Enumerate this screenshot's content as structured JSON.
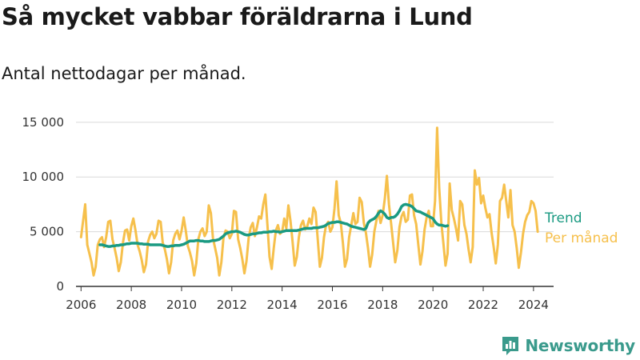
{
  "header": {
    "title": "Så mycket vabbar föräldrarna i Lund",
    "subtitle": "Antal nettodagar per månad."
  },
  "brand": {
    "name": "Newsworthy",
    "icon": "newsworthy-logo-icon",
    "color": "#3a9a8c"
  },
  "chart_data": {
    "type": "line",
    "y_tick_labels": [
      "0",
      "5 000",
      "10 000",
      "15 000"
    ],
    "y_ticks": [
      0,
      5000,
      10000,
      15000
    ],
    "ylim": [
      0,
      15500
    ],
    "x_tick_labels": [
      "2006",
      "2008",
      "2010",
      "2012",
      "2014",
      "2016",
      "2018",
      "2020",
      "2022",
      "2024"
    ],
    "x_ticks": [
      2006,
      2008,
      2010,
      2012,
      2014,
      2016,
      2018,
      2020,
      2022,
      2024
    ],
    "xlim": [
      2005.8,
      2024.8
    ],
    "grid": "horizontal",
    "legend": "right end of lines",
    "series": [
      {
        "name": "Per månad",
        "color": "#f6c04c",
        "start_year": 2006,
        "values": [
          4500,
          6000,
          7500,
          3800,
          3000,
          2200,
          1000,
          1800,
          3800,
          4300,
          4500,
          3600,
          4500,
          5900,
          6000,
          4300,
          3500,
          2600,
          1400,
          2200,
          4000,
          5100,
          5200,
          4200,
          5500,
          6200,
          5100,
          3800,
          3200,
          2400,
          1300,
          2000,
          4100,
          4700,
          5000,
          4400,
          4800,
          6000,
          5900,
          4000,
          3400,
          2500,
          1200,
          2200,
          4200,
          4800,
          5100,
          4300,
          5100,
          6300,
          5100,
          3700,
          3100,
          2300,
          1000,
          2100,
          4300,
          5000,
          5300,
          4600,
          5000,
          7400,
          6700,
          4400,
          3500,
          2600,
          1000,
          2200,
          4400,
          5100,
          5000,
          4400,
          4800,
          6900,
          6800,
          4300,
          3500,
          2500,
          1200,
          2300,
          4400,
          5400,
          5800,
          4600,
          5400,
          6400,
          6200,
          7500,
          8400,
          5600,
          2700,
          1600,
          3500,
          5100,
          5600,
          4800,
          5000,
          6200,
          5300,
          7400,
          6000,
          4100,
          1900,
          2700,
          4500,
          5600,
          6000,
          5200,
          5500,
          6200,
          5700,
          7200,
          6800,
          4300,
          1800,
          2600,
          4500,
          5600,
          5900,
          5000,
          5400,
          7100,
          9600,
          6500,
          5800,
          4000,
          1800,
          2500,
          4500,
          5600,
          6700,
          5700,
          5900,
          8100,
          7700,
          5800,
          4900,
          3500,
          1800,
          2900,
          5000,
          6000,
          6900,
          5800,
          6500,
          8000,
          10100,
          7500,
          5800,
          4000,
          2200,
          3300,
          5400,
          6400,
          6800,
          5900,
          6100,
          8300,
          8400,
          6500,
          5700,
          3800,
          2000,
          3200,
          5200,
          6300,
          6900,
          5500,
          5500,
          7800,
          14500,
          9000,
          5800,
          3900,
          1900,
          3000,
          9400,
          7000,
          6200,
          5300,
          4200,
          7800,
          7500,
          5600,
          4800,
          3400,
          2200,
          3600,
          10600,
          9300,
          9900,
          7600,
          8300,
          7200,
          6300,
          6600,
          4900,
          3600,
          2100,
          3800,
          7800,
          8100,
          9300,
          7800,
          6300,
          8800,
          5600,
          5000,
          3500,
          1700,
          3100,
          4800,
          5900,
          6500,
          6800,
          7800,
          7600,
          6900,
          5000
        ]
      },
      {
        "name": "Trend",
        "color": "#1a9a82",
        "start_year": 2006.75,
        "values": [
          3800,
          3800,
          3750,
          3700,
          3650,
          3650,
          3700,
          3700,
          3750,
          3750,
          3800,
          3800,
          3850,
          3900,
          3900,
          3950,
          3950,
          3950,
          3950,
          3900,
          3900,
          3850,
          3850,
          3850,
          3800,
          3800,
          3800,
          3800,
          3800,
          3800,
          3750,
          3700,
          3650,
          3650,
          3700,
          3700,
          3750,
          3750,
          3750,
          3800,
          3850,
          3950,
          4050,
          4150,
          4150,
          4150,
          4200,
          4200,
          4150,
          4150,
          4100,
          4100,
          4100,
          4150,
          4200,
          4200,
          4250,
          4300,
          4450,
          4600,
          4800,
          4900,
          4950,
          5000,
          5000,
          5050,
          5000,
          4950,
          4850,
          4750,
          4700,
          4700,
          4750,
          4800,
          4800,
          4850,
          4900,
          4900,
          4950,
          4950,
          4950,
          5000,
          5000,
          5050,
          5000,
          5000,
          4950,
          5000,
          5050,
          5100,
          5100,
          5100,
          5100,
          5100,
          5100,
          5150,
          5200,
          5250,
          5300,
          5300,
          5300,
          5300,
          5350,
          5350,
          5350,
          5400,
          5450,
          5500,
          5600,
          5750,
          5800,
          5850,
          5850,
          5900,
          5900,
          5850,
          5800,
          5750,
          5700,
          5600,
          5500,
          5450,
          5400,
          5350,
          5300,
          5250,
          5200,
          5300,
          5800,
          6000,
          6100,
          6200,
          6400,
          6700,
          6900,
          6800,
          6600,
          6300,
          6200,
          6300,
          6300,
          6400,
          6600,
          6900,
          7300,
          7450,
          7500,
          7450,
          7400,
          7300,
          7100,
          6900,
          6850,
          6800,
          6700,
          6600,
          6500,
          6400,
          6300,
          6200,
          5900,
          5700,
          5600,
          5600,
          5550,
          5500,
          5550
        ]
      }
    ]
  }
}
